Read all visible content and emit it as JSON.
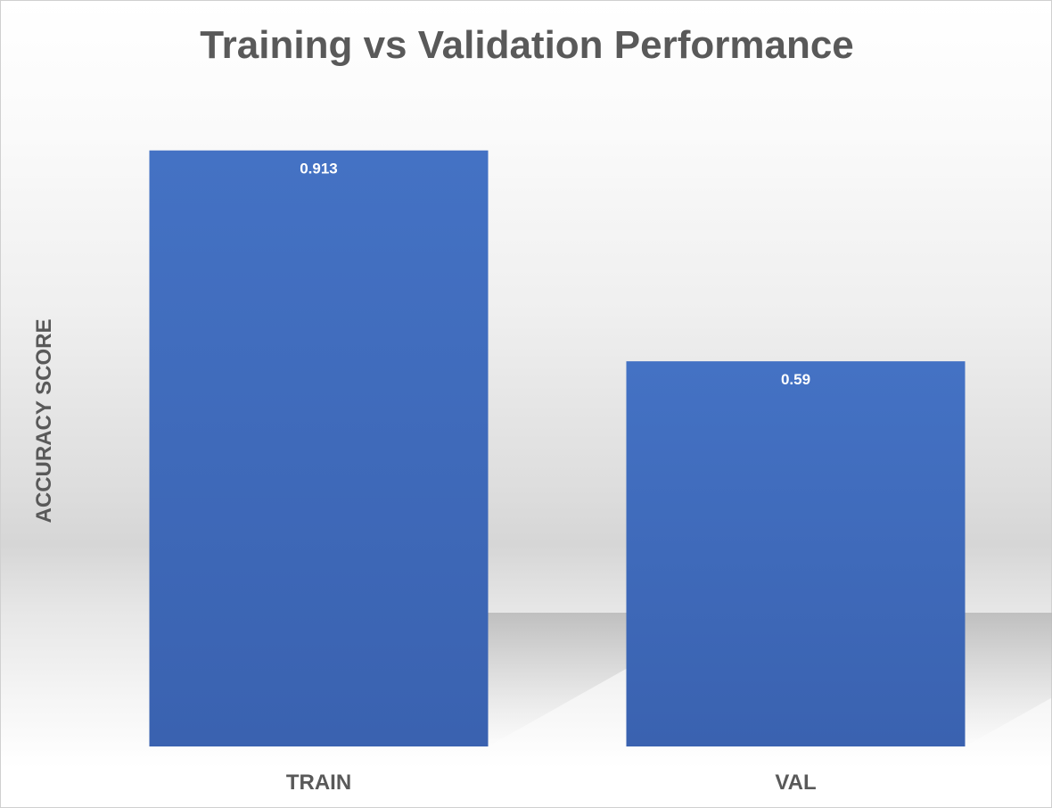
{
  "chart_data": {
    "type": "bar",
    "title": "Training vs Validation Performance",
    "xlabel": "",
    "ylabel": "ACCURACY SCORE",
    "categories": [
      "TRAIN",
      "VAL"
    ],
    "values": [
      0.913,
      0.59
    ],
    "data_labels": [
      "0.913",
      "0.59"
    ],
    "ylim": [
      0,
      1
    ],
    "grid": false,
    "legend": "none",
    "bar_color": "#4472c4",
    "bar_color_dark": "#3a62b0"
  }
}
